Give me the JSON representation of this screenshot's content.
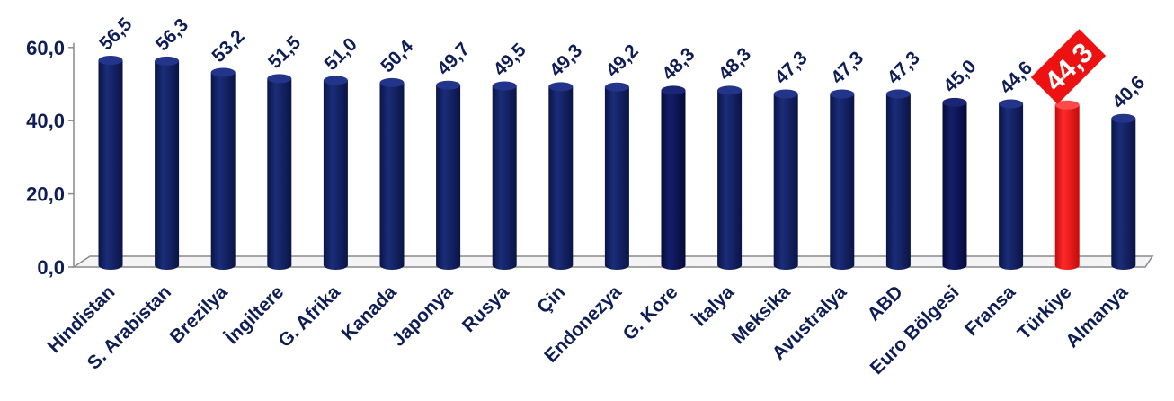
{
  "chart_data": {
    "type": "bar",
    "categories": [
      "Hindistan",
      "S. Arabistan",
      "Brezilya",
      "İngiltere",
      "G. Afrika",
      "Kanada",
      "Japonya",
      "Rusya",
      "Çin",
      "Endonezya",
      "G. Kore",
      "İtalya",
      "Meksika",
      "Avustralya",
      "ABD",
      "Euro Bölgesi",
      "Fransa",
      "Türkiye",
      "Almanya"
    ],
    "values": [
      56.5,
      56.3,
      53.2,
      51.5,
      51.0,
      50.4,
      49.7,
      49.5,
      49.3,
      49.2,
      48.3,
      48.3,
      47.3,
      47.3,
      47.3,
      45.0,
      44.6,
      44.3,
      40.6
    ],
    "value_labels": [
      "56,5",
      "56,3",
      "53,2",
      "51,5",
      "51,0",
      "50,4",
      "49,7",
      "49,5",
      "49,3",
      "49,2",
      "48,3",
      "48,3",
      "47,3",
      "47,3",
      "47,3",
      "45,0",
      "44,6",
      "44,3",
      "40,6"
    ],
    "y_ticks": [
      "0,0",
      "20,0",
      "40,0",
      "60,0"
    ],
    "y_tick_values": [
      0,
      20,
      40,
      60
    ],
    "ylim": [
      0,
      60
    ],
    "highlight_index": 17,
    "colors": {
      "bar": "#0f1d57",
      "bar_dark": "#0a0f4c",
      "highlight": "#ee1111",
      "axis": "#8a8a8a",
      "text": "#0f1d57"
    },
    "title": "",
    "xlabel": "",
    "ylabel": ""
  }
}
